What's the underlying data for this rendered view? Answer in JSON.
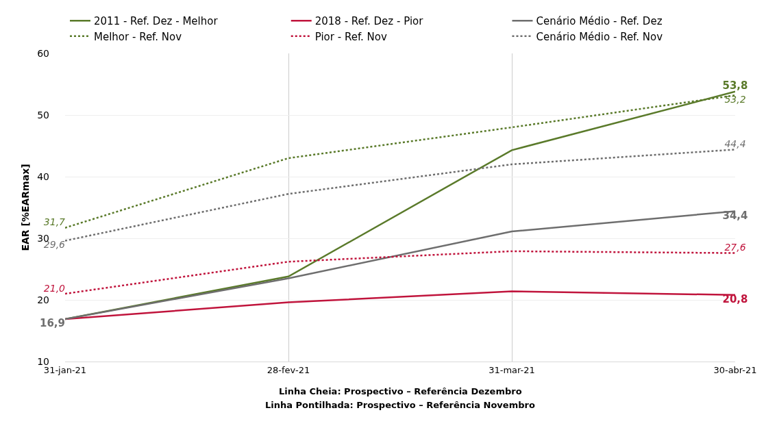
{
  "chart_data": {
    "type": "line",
    "ylabel": "EAR [%EARmax]",
    "categories": [
      "31-jan-21",
      "28-fev-21",
      "31-mar-21",
      "30-abr-21"
    ],
    "ylim": [
      10,
      60
    ],
    "yticks": [
      10,
      20,
      30,
      40,
      50,
      60
    ],
    "grid": true,
    "legend": "top",
    "marker": "none",
    "series": [
      {
        "name": "2011 - Ref. Dez - Melhor",
        "color": "#5a7a2a",
        "line_style": "solid",
        "values": [
          16.9,
          23.8,
          44.3,
          53.8
        ],
        "value_labels": [
          null,
          null,
          null,
          "53,8"
        ]
      },
      {
        "name": "2018 - Ref. Dez - Pior",
        "color": "#c0143c",
        "line_style": "solid",
        "values": [
          16.9,
          19.6,
          21.4,
          20.8
        ],
        "value_labels": [
          null,
          null,
          null,
          "20,8"
        ]
      },
      {
        "name": "Cenário Médio - Ref. Dez",
        "color": "#6e6e6e",
        "line_style": "solid",
        "values": [
          16.9,
          23.5,
          31.1,
          34.4
        ],
        "value_labels": [
          "16,9",
          null,
          null,
          "34,4"
        ]
      },
      {
        "name": "Melhor - Ref. Nov",
        "color": "#5a7a2a",
        "line_style": "dotted",
        "values": [
          31.7,
          43.0,
          48.0,
          53.2
        ],
        "value_labels": [
          "31,7",
          null,
          null,
          "53,2"
        ]
      },
      {
        "name": "Pior - Ref. Nov",
        "color": "#c0143c",
        "line_style": "dotted",
        "values": [
          21.0,
          26.2,
          27.9,
          27.6
        ],
        "value_labels": [
          "21,0",
          null,
          null,
          "27,6"
        ]
      },
      {
        "name": "Cenário Médio - Ref. Nov",
        "color": "#6e6e6e",
        "line_style": "dotted",
        "values": [
          29.6,
          37.2,
          42.0,
          44.4
        ],
        "value_labels": [
          "29,6",
          null,
          null,
          "44,4"
        ]
      }
    ],
    "annotations": [
      "Linha Cheia: Prospectivo – Referência Dezembro",
      "Linha Pontilhada: Prospectivo – Referência Novembro"
    ]
  }
}
